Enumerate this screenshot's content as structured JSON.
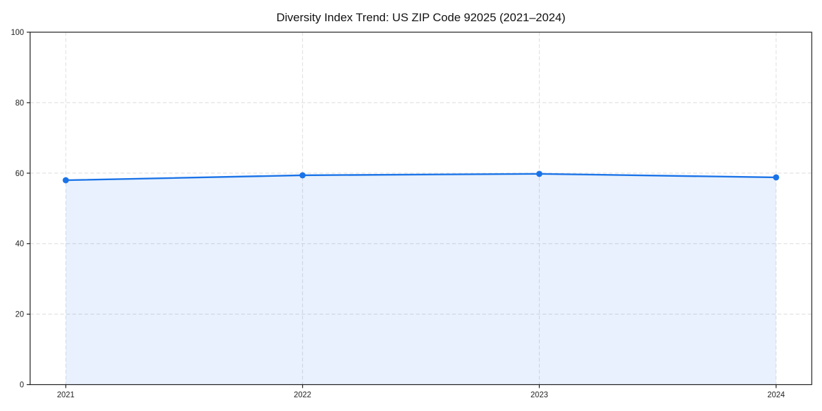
{
  "chart_data": {
    "type": "line",
    "title": "Diversity Index Trend: US ZIP Code 92025 (2021–2024)",
    "categories": [
      "2021",
      "2022",
      "2023",
      "2024"
    ],
    "series": [
      {
        "name": "Diversity Index",
        "values": [
          58.0,
          59.4,
          59.8,
          58.8
        ]
      }
    ],
    "xlabel": "",
    "ylabel": "",
    "ylim": [
      0,
      100
    ],
    "yticks": [
      0,
      20,
      40,
      60,
      80,
      100
    ],
    "grid": "dashed-both-axes",
    "legend_position": "none",
    "area_fill_to_zero": true,
    "marker": "circle",
    "colors": {
      "line": "#1a73e8",
      "marker": "#1a73e8",
      "fill": "#1a73e8",
      "fill_opacity": 0.1,
      "grid": "#dcdcdc",
      "axis": "#1a1a1a",
      "tick_label": "#222222",
      "title": "#111111",
      "background": "#ffffff"
    }
  }
}
